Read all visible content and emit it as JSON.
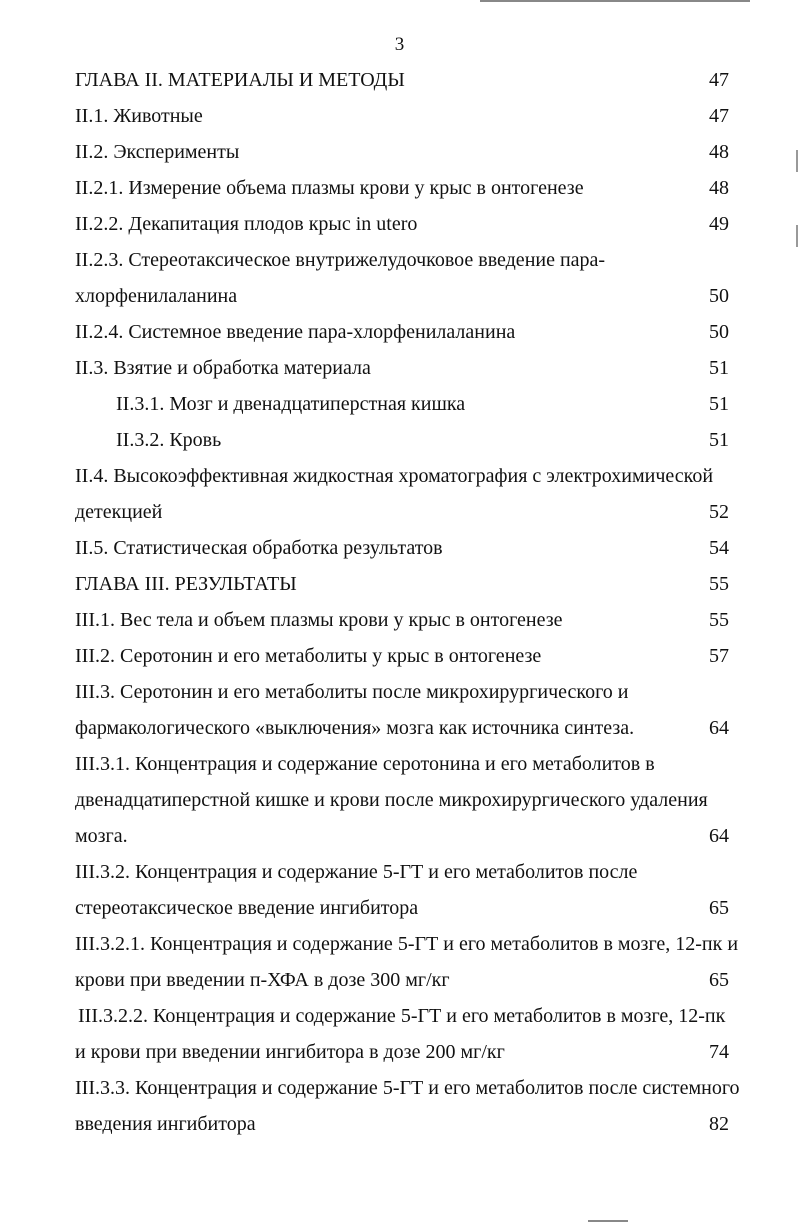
{
  "page_number": "3",
  "lines": [
    {
      "text": "ГЛАВА II. МАТЕРИАЛЫ И МЕТОДЫ",
      "page": "47"
    },
    {
      "text": "II.1. Животные",
      "page": "47"
    },
    {
      "text": "II.2. Эксперименты",
      "page": "48"
    },
    {
      "text": "II.2.1. Измерение объема плазмы крови у крыс в онтогенезе",
      "page": "48"
    },
    {
      "text": "II.2.2. Декапитация плодов крыс in utero",
      "page": "49"
    },
    {
      "text": "II.2.3. Стереотаксическое внутрижелудочковое введение пара-",
      "page": ""
    },
    {
      "text": "хлорфенилаланина",
      "page": "50"
    },
    {
      "text": "II.2.4. Системное введение пара-хлорфенилаланина",
      "page": "50"
    },
    {
      "text": "II.3. Взятие и обработка материала",
      "page": "51"
    },
    {
      "text": "II.3.1. Мозг и двенадцатиперстная кишка",
      "page": "51",
      "indent": true
    },
    {
      "text": "II.3.2. Кровь",
      "page": "51",
      "indent": true
    },
    {
      "text": "II.4. Высокоэффективная жидкостная хроматография с электрохимической",
      "page": ""
    },
    {
      "text": "детекцией",
      "page": "52"
    },
    {
      "text": "II.5. Статистическая обработка результатов",
      "page": "54"
    },
    {
      "text": "ГЛАВА III. РЕЗУЛЬТАТЫ",
      "page": "55"
    },
    {
      "text": "III.1. Вес тела и объем плазмы крови у крыс в онтогенезе",
      "page": "55"
    },
    {
      "text": "III.2. Серотонин и его метаболиты у крыс в онтогенезе",
      "page": "57"
    },
    {
      "text": "III.3. Серотонин и его метаболиты после микрохирургического и",
      "page": ""
    },
    {
      "text": "фармакологического «выключения» мозга как источника синтеза.",
      "page": "64"
    },
    {
      "text": "III.3.1. Концентрация и содержание серотонина и его метаболитов в",
      "page": ""
    },
    {
      "text": "двенадцатиперстной кишке и крови после микрохирургического удаления",
      "page": ""
    },
    {
      "text": "мозга.",
      "page": "64"
    },
    {
      "text": "III.3.2. Концентрация и содержание 5-ГТ и его метаболитов после",
      "page": ""
    },
    {
      "text": "стереотаксическое введение ингибитора",
      "page": "65"
    },
    {
      "text": "III.3.2.1. Концентрация и содержание 5-ГТ и его метаболитов в мозге, 12-пк и",
      "page": ""
    },
    {
      "text": "крови при введении п-ХФА в дозе 300 мг/кг",
      "page": "65"
    },
    {
      "text": "III.3.2.2. Концентрация и содержание 5-ГТ и его метаболитов в мозге, 12-пк",
      "page": "",
      "slight": true
    },
    {
      "text": "и крови при введении ингибитора в дозе 200 мг/кг",
      "page": "74"
    },
    {
      "text": "III.3.3. Концентрация и содержание 5-ГТ и его метаболитов после системного",
      "page": ""
    },
    {
      "text": "введения ингибитора",
      "page": "82"
    }
  ]
}
